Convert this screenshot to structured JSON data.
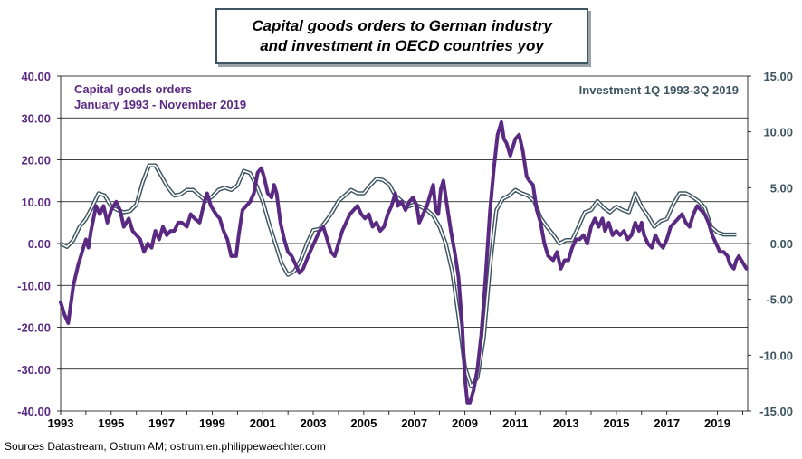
{
  "title": {
    "line1": "Capital goods orders to German industry",
    "line2": "and investment in OECD countries yoy"
  },
  "legend": {
    "left_line1": "Capital goods orders",
    "left_line2": "January 1993 - November 2019",
    "right": "Investment 1Q 1993-3Q 2019"
  },
  "source": "Sources Datastream, Ostrum AM; ostrum.en.philippewaechter.com",
  "colors": {
    "orders": "#5a2a82",
    "investment": "#3d5560",
    "grid": "#000000"
  },
  "chart_data": {
    "type": "line",
    "x_ticks": [
      "1993",
      "1995",
      "1997",
      "1999",
      "2001",
      "2003",
      "2005",
      "2007",
      "2009",
      "2011",
      "2013",
      "2015",
      "2017",
      "2019"
    ],
    "xlim": [
      1993,
      2020.2
    ],
    "y_left": {
      "ylim": [
        -40,
        40
      ],
      "ticks": [
        "-40.00",
        "-30.00",
        "-20.00",
        "-10.00",
        "0.00",
        "10.00",
        "20.00",
        "30.00",
        "40.00"
      ]
    },
    "y_right": {
      "ylim": [
        -15,
        15
      ],
      "ticks": [
        "-15.00",
        "-10.00",
        "-5.00",
        "0.00",
        "5.00",
        "10.00",
        "15.00"
      ]
    },
    "grid": "horizontal",
    "series": [
      {
        "name": "Capital goods orders",
        "axis": "left",
        "points": [
          [
            1993.0,
            -14
          ],
          [
            1993.15,
            -17
          ],
          [
            1993.3,
            -19
          ],
          [
            1993.5,
            -10
          ],
          [
            1993.7,
            -5
          ],
          [
            1993.85,
            -2
          ],
          [
            1994.0,
            1
          ],
          [
            1994.1,
            -1
          ],
          [
            1994.2,
            3
          ],
          [
            1994.4,
            9
          ],
          [
            1994.55,
            7
          ],
          [
            1994.7,
            9
          ],
          [
            1994.85,
            5
          ],
          [
            1995.0,
            8
          ],
          [
            1995.2,
            10
          ],
          [
            1995.35,
            8
          ],
          [
            1995.5,
            4
          ],
          [
            1995.7,
            6
          ],
          [
            1995.85,
            3
          ],
          [
            1996.0,
            2
          ],
          [
            1996.15,
            1
          ],
          [
            1996.3,
            -2
          ],
          [
            1996.45,
            0
          ],
          [
            1996.6,
            -1
          ],
          [
            1996.75,
            3
          ],
          [
            1996.9,
            1
          ],
          [
            1997.05,
            4
          ],
          [
            1997.2,
            2
          ],
          [
            1997.35,
            3
          ],
          [
            1997.5,
            3
          ],
          [
            1997.65,
            5
          ],
          [
            1997.8,
            5
          ],
          [
            1998.0,
            4
          ],
          [
            1998.15,
            7
          ],
          [
            1998.3,
            6
          ],
          [
            1998.5,
            5
          ],
          [
            1998.65,
            9
          ],
          [
            1998.8,
            12
          ],
          [
            1998.95,
            9
          ],
          [
            1999.15,
            7
          ],
          [
            1999.3,
            6
          ],
          [
            1999.45,
            3
          ],
          [
            1999.6,
            1
          ],
          [
            1999.75,
            -3
          ],
          [
            1999.95,
            -3
          ],
          [
            2000.05,
            2
          ],
          [
            2000.2,
            8
          ],
          [
            2000.35,
            9
          ],
          [
            2000.5,
            10
          ],
          [
            2000.65,
            12
          ],
          [
            2000.8,
            17
          ],
          [
            2000.95,
            18
          ],
          [
            2001.05,
            16
          ],
          [
            2001.2,
            12
          ],
          [
            2001.35,
            11
          ],
          [
            2001.45,
            14
          ],
          [
            2001.55,
            12
          ],
          [
            2001.7,
            5
          ],
          [
            2001.85,
            1
          ],
          [
            2002.0,
            -2
          ],
          [
            2002.15,
            -3
          ],
          [
            2002.3,
            -5
          ],
          [
            2002.45,
            -7
          ],
          [
            2002.6,
            -6
          ],
          [
            2002.8,
            -3
          ],
          [
            2002.95,
            -1
          ],
          [
            2003.1,
            1
          ],
          [
            2003.25,
            3
          ],
          [
            2003.4,
            4
          ],
          [
            2003.55,
            1
          ],
          [
            2003.7,
            -2
          ],
          [
            2003.85,
            -3
          ],
          [
            2004.0,
            0
          ],
          [
            2004.15,
            3
          ],
          [
            2004.3,
            5
          ],
          [
            2004.45,
            7
          ],
          [
            2004.6,
            8
          ],
          [
            2004.75,
            9
          ],
          [
            2004.9,
            7
          ],
          [
            2005.05,
            6
          ],
          [
            2005.2,
            7
          ],
          [
            2005.35,
            4
          ],
          [
            2005.5,
            5
          ],
          [
            2005.65,
            3
          ],
          [
            2005.8,
            4
          ],
          [
            2005.95,
            7
          ],
          [
            2006.1,
            9
          ],
          [
            2006.25,
            12
          ],
          [
            2006.35,
            9
          ],
          [
            2006.5,
            10
          ],
          [
            2006.65,
            8
          ],
          [
            2006.8,
            10
          ],
          [
            2006.95,
            11
          ],
          [
            2007.1,
            9
          ],
          [
            2007.2,
            5
          ],
          [
            2007.35,
            7
          ],
          [
            2007.5,
            9
          ],
          [
            2007.65,
            12
          ],
          [
            2007.75,
            14
          ],
          [
            2007.85,
            8
          ],
          [
            2007.95,
            7
          ],
          [
            2008.05,
            13
          ],
          [
            2008.15,
            15
          ],
          [
            2008.3,
            9
          ],
          [
            2008.45,
            3
          ],
          [
            2008.6,
            -2
          ],
          [
            2008.75,
            -8
          ],
          [
            2008.9,
            -20
          ],
          [
            2009.0,
            -32
          ],
          [
            2009.1,
            -38
          ],
          [
            2009.2,
            -38
          ],
          [
            2009.35,
            -35
          ],
          [
            2009.5,
            -30
          ],
          [
            2009.65,
            -22
          ],
          [
            2009.8,
            -10
          ],
          [
            2010.0,
            8
          ],
          [
            2010.15,
            18
          ],
          [
            2010.3,
            26
          ],
          [
            2010.45,
            29
          ],
          [
            2010.55,
            25
          ],
          [
            2010.65,
            24
          ],
          [
            2010.8,
            21
          ],
          [
            2010.9,
            23
          ],
          [
            2011.0,
            25
          ],
          [
            2011.15,
            26
          ],
          [
            2011.3,
            22
          ],
          [
            2011.45,
            16
          ],
          [
            2011.55,
            15
          ],
          [
            2011.7,
            14
          ],
          [
            2011.85,
            8
          ],
          [
            2012.0,
            5
          ],
          [
            2012.15,
            0
          ],
          [
            2012.3,
            -3
          ],
          [
            2012.5,
            -4
          ],
          [
            2012.65,
            -2
          ],
          [
            2012.8,
            -6
          ],
          [
            2012.95,
            -4
          ],
          [
            2013.1,
            -4
          ],
          [
            2013.25,
            -1
          ],
          [
            2013.4,
            1
          ],
          [
            2013.55,
            1
          ],
          [
            2013.7,
            2
          ],
          [
            2013.85,
            0
          ],
          [
            2014.0,
            4
          ],
          [
            2014.15,
            6
          ],
          [
            2014.3,
            4
          ],
          [
            2014.45,
            6
          ],
          [
            2014.55,
            3
          ],
          [
            2014.7,
            5
          ],
          [
            2014.85,
            2
          ],
          [
            2015.0,
            3
          ],
          [
            2015.15,
            2
          ],
          [
            2015.3,
            3
          ],
          [
            2015.45,
            1
          ],
          [
            2015.6,
            2
          ],
          [
            2015.75,
            5
          ],
          [
            2015.9,
            3
          ],
          [
            2016.0,
            5
          ],
          [
            2016.1,
            2
          ],
          [
            2016.25,
            0
          ],
          [
            2016.4,
            -1
          ],
          [
            2016.55,
            2
          ],
          [
            2016.7,
            0
          ],
          [
            2016.85,
            -1
          ],
          [
            2017.0,
            1
          ],
          [
            2017.15,
            4
          ],
          [
            2017.3,
            5
          ],
          [
            2017.45,
            6
          ],
          [
            2017.6,
            7
          ],
          [
            2017.75,
            5
          ],
          [
            2017.9,
            4
          ],
          [
            2018.05,
            7
          ],
          [
            2018.2,
            9
          ],
          [
            2018.35,
            8
          ],
          [
            2018.5,
            7
          ],
          [
            2018.65,
            5
          ],
          [
            2018.8,
            2
          ],
          [
            2018.95,
            0
          ],
          [
            2019.1,
            -2
          ],
          [
            2019.25,
            -2
          ],
          [
            2019.4,
            -3
          ],
          [
            2019.5,
            -5
          ],
          [
            2019.65,
            -6
          ],
          [
            2019.75,
            -4
          ],
          [
            2019.85,
            -3
          ],
          [
            2019.95,
            -4
          ],
          [
            2020.05,
            -5
          ],
          [
            2020.15,
            -6
          ]
        ]
      },
      {
        "name": "Investment 1Q 1993-3Q 2019",
        "axis": "right",
        "points": [
          [
            1993.0,
            0
          ],
          [
            1993.25,
            -0.3
          ],
          [
            1993.5,
            0.3
          ],
          [
            1993.75,
            1.5
          ],
          [
            1994.0,
            2.2
          ],
          [
            1994.25,
            3.3
          ],
          [
            1994.5,
            4.5
          ],
          [
            1994.75,
            4.3
          ],
          [
            1995.0,
            3.3
          ],
          [
            1995.25,
            3.0
          ],
          [
            1995.5,
            2.8
          ],
          [
            1995.75,
            2.9
          ],
          [
            1996.0,
            3.5
          ],
          [
            1996.25,
            5.5
          ],
          [
            1996.5,
            7.0
          ],
          [
            1996.75,
            7.0
          ],
          [
            1997.0,
            6.0
          ],
          [
            1997.25,
            5.0
          ],
          [
            1997.5,
            4.3
          ],
          [
            1997.75,
            4.4
          ],
          [
            1998.0,
            4.8
          ],
          [
            1998.25,
            4.8
          ],
          [
            1998.5,
            4.3
          ],
          [
            1998.75,
            3.8
          ],
          [
            1999.0,
            4.2
          ],
          [
            1999.25,
            4.8
          ],
          [
            1999.5,
            5.0
          ],
          [
            1999.75,
            4.8
          ],
          [
            2000.0,
            5.2
          ],
          [
            2000.25,
            6.5
          ],
          [
            2000.5,
            6.3
          ],
          [
            2000.75,
            5.2
          ],
          [
            2001.0,
            3.8
          ],
          [
            2001.25,
            1.8
          ],
          [
            2001.5,
            0.0
          ],
          [
            2001.75,
            -1.8
          ],
          [
            2002.0,
            -2.8
          ],
          [
            2002.25,
            -2.5
          ],
          [
            2002.5,
            -1.5
          ],
          [
            2002.75,
            0.0
          ],
          [
            2003.0,
            1.2
          ],
          [
            2003.25,
            1.3
          ],
          [
            2003.5,
            2.0
          ],
          [
            2003.75,
            2.8
          ],
          [
            2004.0,
            3.8
          ],
          [
            2004.25,
            4.3
          ],
          [
            2004.5,
            4.8
          ],
          [
            2004.75,
            4.5
          ],
          [
            2005.0,
            4.5
          ],
          [
            2005.25,
            5.2
          ],
          [
            2005.5,
            5.8
          ],
          [
            2005.75,
            5.7
          ],
          [
            2006.0,
            5.3
          ],
          [
            2006.25,
            4.3
          ],
          [
            2006.5,
            3.8
          ],
          [
            2006.75,
            3.3
          ],
          [
            2007.0,
            3.5
          ],
          [
            2007.25,
            3.3
          ],
          [
            2007.5,
            3.0
          ],
          [
            2007.75,
            2.5
          ],
          [
            2008.0,
            1.5
          ],
          [
            2008.25,
            0.0
          ],
          [
            2008.5,
            -2.5
          ],
          [
            2008.75,
            -6.5
          ],
          [
            2009.0,
            -11.0
          ],
          [
            2009.25,
            -12.8
          ],
          [
            2009.5,
            -12.0
          ],
          [
            2009.75,
            -8.5
          ],
          [
            2010.0,
            -2.0
          ],
          [
            2010.25,
            3.0
          ],
          [
            2010.5,
            4.0
          ],
          [
            2010.75,
            4.3
          ],
          [
            2011.0,
            4.8
          ],
          [
            2011.25,
            4.5
          ],
          [
            2011.5,
            4.3
          ],
          [
            2011.75,
            3.8
          ],
          [
            2012.0,
            2.3
          ],
          [
            2012.25,
            1.5
          ],
          [
            2012.5,
            0.8
          ],
          [
            2012.75,
            0.0
          ],
          [
            2013.0,
            0.3
          ],
          [
            2013.25,
            0.3
          ],
          [
            2013.5,
            1.5
          ],
          [
            2013.75,
            2.8
          ],
          [
            2014.0,
            3.0
          ],
          [
            2014.25,
            3.8
          ],
          [
            2014.5,
            3.2
          ],
          [
            2014.75,
            2.8
          ],
          [
            2015.0,
            3.3
          ],
          [
            2015.25,
            3.0
          ],
          [
            2015.5,
            2.8
          ],
          [
            2015.75,
            4.5
          ],
          [
            2016.0,
            3.3
          ],
          [
            2016.25,
            2.5
          ],
          [
            2016.5,
            1.5
          ],
          [
            2016.75,
            2.0
          ],
          [
            2017.0,
            2.2
          ],
          [
            2017.25,
            3.5
          ],
          [
            2017.5,
            4.5
          ],
          [
            2017.75,
            4.5
          ],
          [
            2018.0,
            4.2
          ],
          [
            2018.25,
            3.8
          ],
          [
            2018.5,
            3.2
          ],
          [
            2018.75,
            1.5
          ],
          [
            2019.0,
            1.0
          ],
          [
            2019.25,
            0.8
          ],
          [
            2019.5,
            0.8
          ],
          [
            2019.75,
            0.8
          ]
        ]
      }
    ]
  }
}
